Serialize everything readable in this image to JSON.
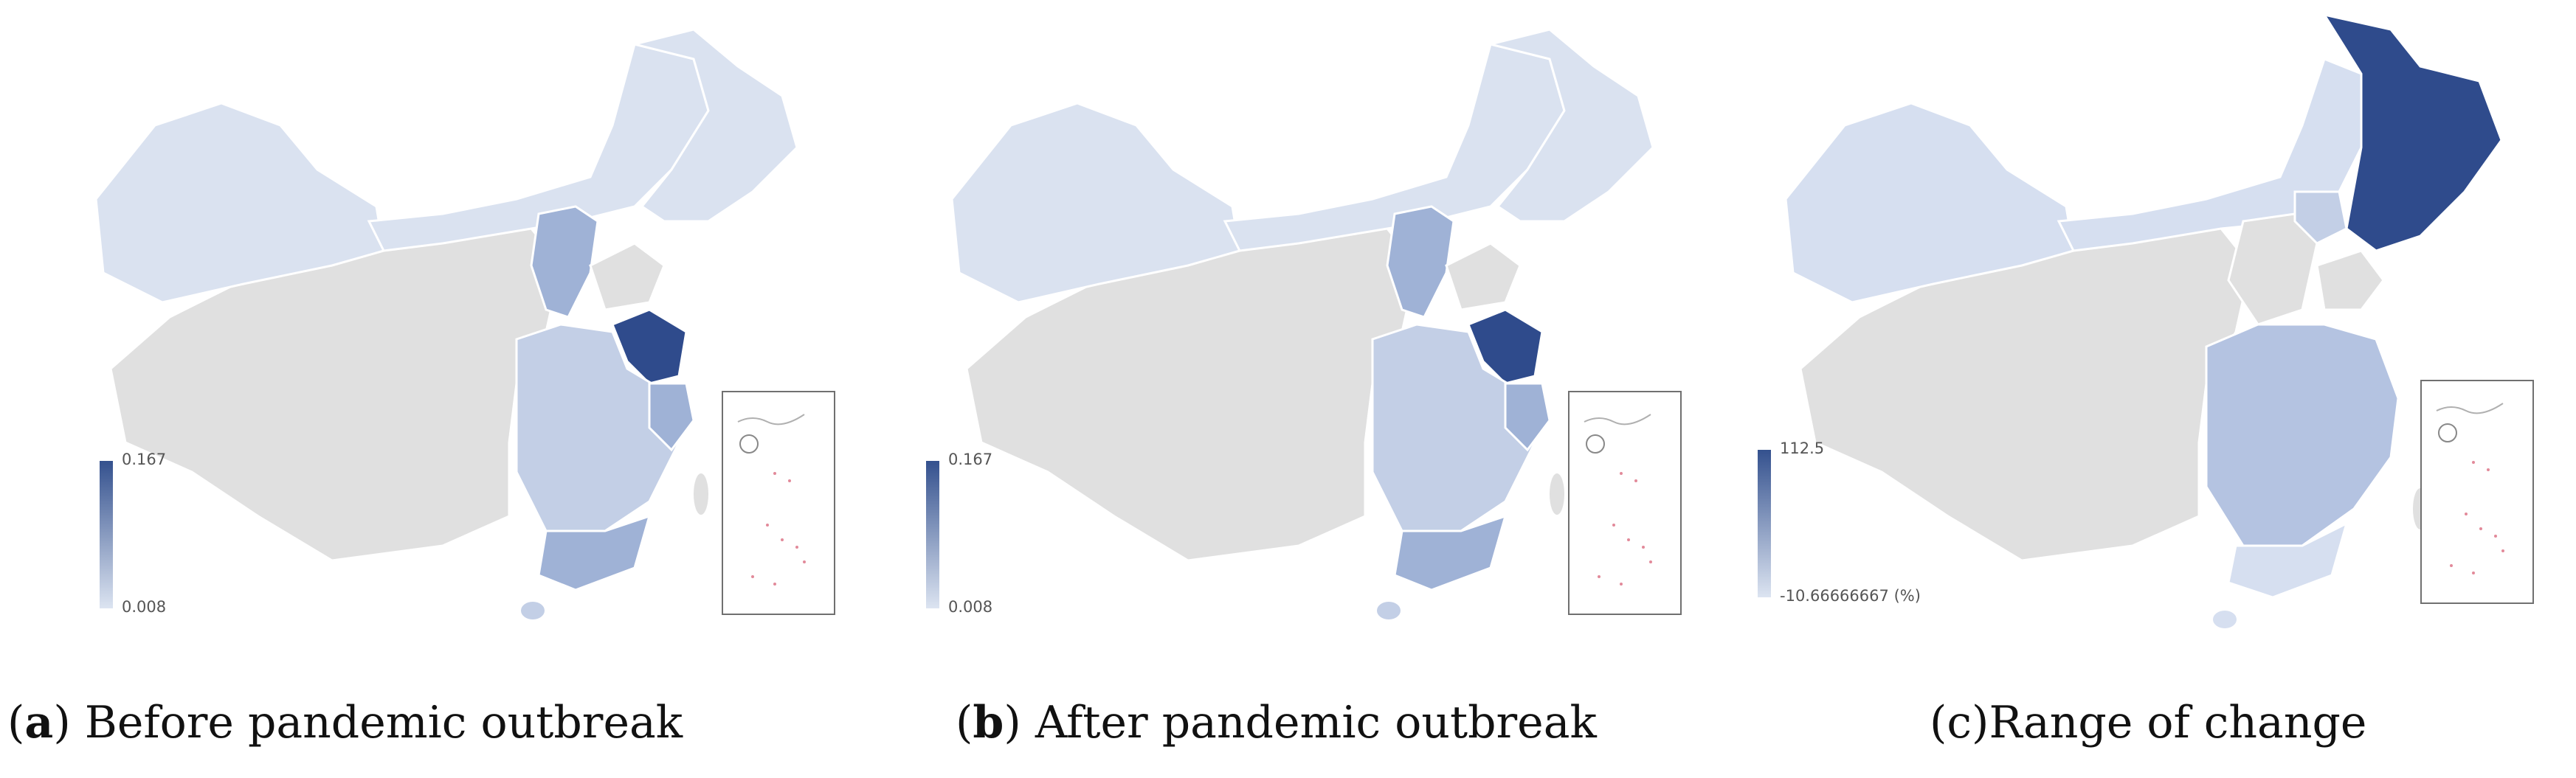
{
  "panels": [
    {
      "id": "a",
      "caption_letter": "a",
      "caption_text": "Before pandemic outbreak",
      "legend": {
        "max": "0.167",
        "min": "0.008",
        "unit": ""
      },
      "colors": {
        "light": "#dae2f0",
        "mid_light": "#c3cfe6",
        "mid": "#9fb2d6",
        "dark": "#2f4b8c",
        "gray": "#e0e0e0"
      }
    },
    {
      "id": "b",
      "caption_letter": "b",
      "caption_text": "After pandemic outbreak",
      "legend": {
        "max": "0.167",
        "min": "0.008",
        "unit": ""
      },
      "colors": {
        "light": "#dae2f0",
        "mid_light": "#c3cfe6",
        "mid": "#9fb2d6",
        "dark": "#2f4b8c",
        "gray": "#e0e0e0"
      }
    },
    {
      "id": "c",
      "caption_letter": "c",
      "caption_text": "Range of change",
      "legend": {
        "max": "112.5",
        "min": "-10.66666667",
        "unit": "(%)"
      },
      "colors": {
        "light": "#d6dff0",
        "mid_light": "#c3cfe6",
        "mid": "#b4c3e1",
        "dark": "#2f4b8c",
        "gray": "#e0e0e0"
      }
    }
  ]
}
